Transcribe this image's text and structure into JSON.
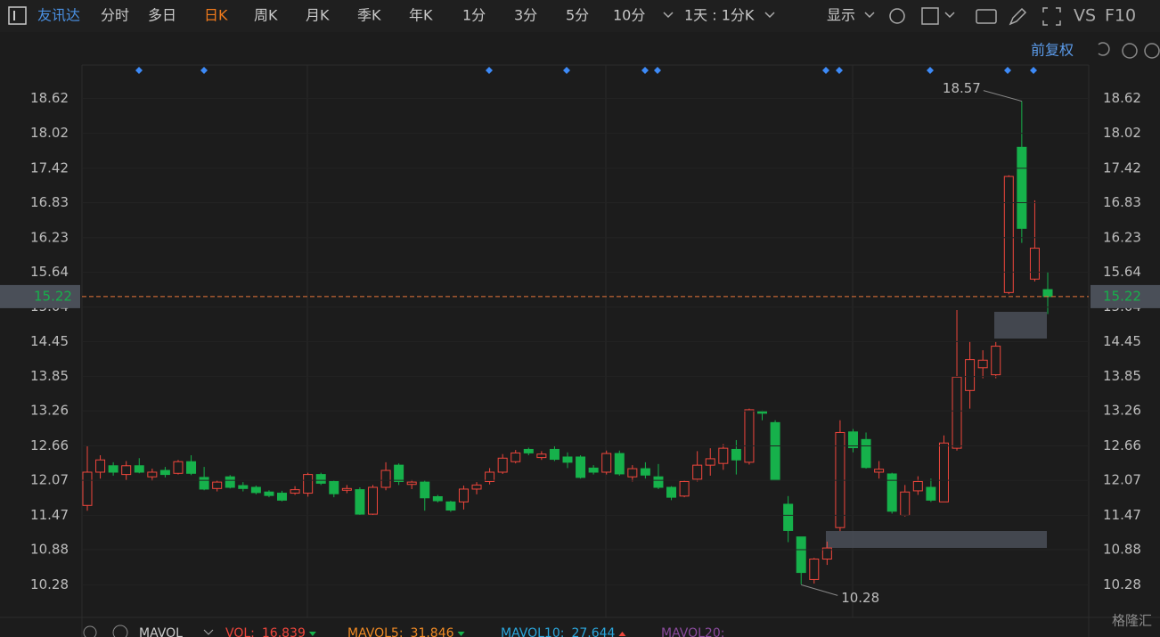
{
  "toolbar": {
    "stock": "友讯达",
    "periods": [
      "分时",
      "多日",
      "日K",
      "周K",
      "月K",
      "季K",
      "年K",
      "1分",
      "3分",
      "5分",
      "10分"
    ],
    "period_selector": "1天 : 1分K",
    "display": "显示",
    "vs": "VS",
    "f10": "F10",
    "adjust": "前复权"
  },
  "chart_data": {
    "type": "candlestick",
    "open": [
      11.64,
      12.21,
      12.32,
      12.17,
      12.32,
      12.13,
      12.24,
      12.19,
      12.39,
      12.12,
      11.93,
      12.13,
      11.98,
      11.95,
      11.87,
      11.85,
      11.85,
      11.85,
      12.17,
      12.05,
      11.9,
      11.91,
      11.49,
      11.95,
      12.33,
      12.0,
      12.04,
      11.79,
      11.7,
      11.7,
      11.92,
      12.05,
      12.21,
      12.39,
      12.6,
      12.46,
      12.6,
      12.47,
      12.47,
      12.28,
      12.21,
      12.53,
      12.13,
      12.27,
      12.13,
      11.95,
      11.8,
      12.09,
      12.33,
      12.36,
      12.6,
      12.38,
      13.25,
      13.06,
      11.66,
      11.1,
      10.37,
      10.72,
      11.26,
      12.9,
      12.77,
      12.21,
      12.18,
      11.47,
      11.89,
      11.95,
      11.7,
      12.62,
      13.61,
      14.0,
      13.88,
      15.29,
      17.78,
      15.52,
      15.34
    ],
    "high": [
      12.66,
      12.5,
      12.38,
      12.4,
      12.45,
      12.27,
      12.3,
      12.42,
      12.5,
      12.3,
      12.07,
      12.16,
      12.04,
      11.98,
      11.9,
      11.89,
      11.97,
      12.2,
      12.2,
      12.07,
      11.99,
      11.95,
      11.99,
      12.38,
      12.36,
      12.08,
      12.07,
      11.82,
      11.72,
      11.98,
      12.04,
      12.28,
      12.52,
      12.59,
      12.63,
      12.57,
      12.66,
      12.55,
      12.5,
      12.33,
      12.58,
      12.58,
      12.33,
      12.38,
      12.35,
      11.97,
      12.07,
      12.57,
      12.62,
      12.69,
      12.76,
      13.3,
      13.27,
      13.1,
      11.8,
      11.1,
      10.74,
      11.02,
      13.1,
      12.95,
      12.89,
      12.4,
      12.2,
      11.99,
      12.14,
      12.1,
      12.84,
      14.99,
      14.45,
      14.3,
      14.45,
      17.3,
      18.57,
      16.87,
      15.64
    ],
    "low": [
      11.55,
      12.1,
      12.15,
      12.07,
      12.19,
      12.06,
      12.12,
      12.17,
      12.16,
      11.9,
      11.88,
      11.93,
      11.88,
      11.83,
      11.78,
      11.71,
      11.82,
      11.79,
      11.99,
      11.78,
      11.85,
      11.47,
      11.47,
      11.9,
      11.99,
      11.92,
      11.55,
      11.69,
      11.53,
      11.57,
      11.83,
      12.0,
      12.18,
      12.36,
      12.5,
      12.42,
      12.4,
      12.28,
      12.1,
      12.17,
      12.17,
      12.15,
      12.05,
      12.1,
      11.92,
      11.73,
      11.78,
      12.05,
      12.15,
      12.25,
      12.17,
      12.34,
      13.1,
      12.07,
      11.01,
      10.28,
      10.3,
      10.62,
      11.2,
      12.55,
      12.27,
      12.1,
      11.5,
      11.45,
      11.82,
      11.7,
      11.7,
      12.58,
      13.3,
      13.82,
      13.82,
      15.26,
      16.14,
      15.48,
      14.92
    ],
    "close": [
      12.21,
      12.42,
      12.21,
      12.32,
      12.21,
      12.21,
      12.17,
      12.39,
      12.19,
      11.92,
      12.04,
      11.95,
      11.93,
      11.86,
      11.81,
      11.73,
      11.91,
      12.17,
      12.02,
      11.84,
      11.93,
      11.49,
      11.95,
      12.24,
      12.05,
      12.04,
      11.77,
      11.72,
      11.56,
      11.92,
      11.99,
      12.21,
      12.45,
      12.54,
      12.54,
      12.52,
      12.43,
      12.38,
      12.12,
      12.21,
      12.53,
      12.18,
      12.27,
      12.16,
      11.95,
      11.78,
      12.05,
      12.33,
      12.44,
      12.62,
      12.42,
      13.28,
      13.22,
      12.07,
      11.21,
      10.49,
      10.72,
      10.91,
      12.89,
      12.63,
      12.29,
      12.26,
      11.54,
      11.87,
      12.05,
      11.73,
      12.71,
      13.84,
      14.14,
      14.13,
      14.37,
      17.28,
      16.39,
      16.05,
      15.22
    ],
    "ylim": [
      9.72,
      19.19
    ],
    "yticks": [
      10.28,
      10.88,
      11.47,
      12.07,
      12.66,
      13.26,
      13.85,
      14.45,
      15.04,
      15.64,
      16.23,
      16.83,
      17.42,
      18.02,
      18.62
    ],
    "last_price": 15.22,
    "high_label": 18.57,
    "low_label": 10.28,
    "up_color": "#f0463c",
    "down_color": "#16b14b"
  },
  "indicators": {
    "name": "MAVOL",
    "items": [
      {
        "label": "VOL:",
        "value": 16.839,
        "color": "#f0463c"
      },
      {
        "label": "MAVOL5:",
        "value": 31.846,
        "color": "#f08a24"
      },
      {
        "label": "MAVOL10:",
        "value": 27.644,
        "color": "#2ba6dc"
      },
      {
        "label": "MAVOL20:",
        "color": "#8a4b9c"
      }
    ]
  },
  "watermark": "格隆汇"
}
